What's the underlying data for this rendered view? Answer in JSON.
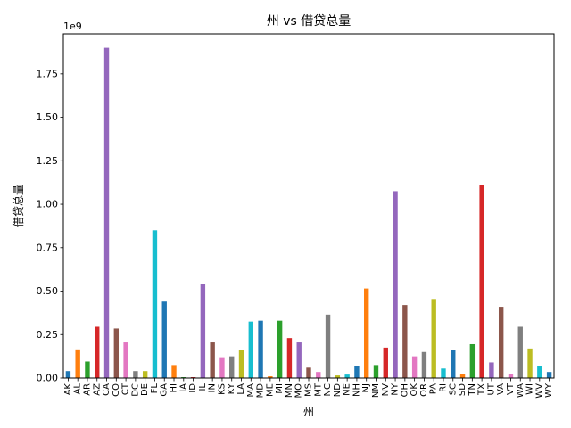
{
  "chart_data": {
    "type": "bar",
    "title": "州 vs 借贷总量",
    "xlabel": "州",
    "ylabel": "借贷总量",
    "y_multiplier_label": "1e9",
    "y_scale": 1000000000,
    "ylim": [
      0,
      1.98
    ],
    "yticks": [
      0.0,
      0.25,
      0.5,
      0.75,
      1.0,
      1.25,
      1.5,
      1.75
    ],
    "ytick_labels": [
      "0.00",
      "0.25",
      "0.50",
      "0.75",
      "1.00",
      "1.25",
      "1.50",
      "1.75"
    ],
    "grid": false,
    "legend": "none",
    "palette": [
      "#1f77b4",
      "#ff7f0e",
      "#2ca02c",
      "#d62728",
      "#9467bd",
      "#8c564b",
      "#e377c2",
      "#7f7f7f",
      "#bcbd22",
      "#17becf"
    ],
    "categories": [
      "AK",
      "AL",
      "AR",
      "AZ",
      "CA",
      "CO",
      "CT",
      "DC",
      "DE",
      "FL",
      "GA",
      "HI",
      "IA",
      "ID",
      "IL",
      "IN",
      "KS",
      "KY",
      "LA",
      "MA",
      "MD",
      "ME",
      "MI",
      "MN",
      "MO",
      "MS",
      "MT",
      "NC",
      "ND",
      "NE",
      "NH",
      "NJ",
      "NM",
      "NV",
      "NY",
      "OH",
      "OK",
      "OR",
      "PA",
      "RI",
      "SC",
      "SD",
      "TN",
      "TX",
      "UT",
      "VA",
      "VT",
      "WA",
      "WI",
      "WV",
      "WY"
    ],
    "values": [
      0.04,
      0.165,
      0.095,
      0.295,
      1.9,
      0.285,
      0.205,
      0.04,
      0.04,
      0.85,
      0.44,
      0.075,
      0.005,
      0.005,
      0.54,
      0.205,
      0.12,
      0.125,
      0.16,
      0.325,
      0.33,
      0.01,
      0.33,
      0.23,
      0.205,
      0.06,
      0.035,
      0.365,
      0.015,
      0.02,
      0.07,
      0.515,
      0.075,
      0.175,
      1.075,
      0.42,
      0.125,
      0.15,
      0.455,
      0.055,
      0.16,
      0.025,
      0.195,
      1.11,
      0.09,
      0.41,
      0.025,
      0.295,
      0.17,
      0.07,
      0.035
    ]
  }
}
